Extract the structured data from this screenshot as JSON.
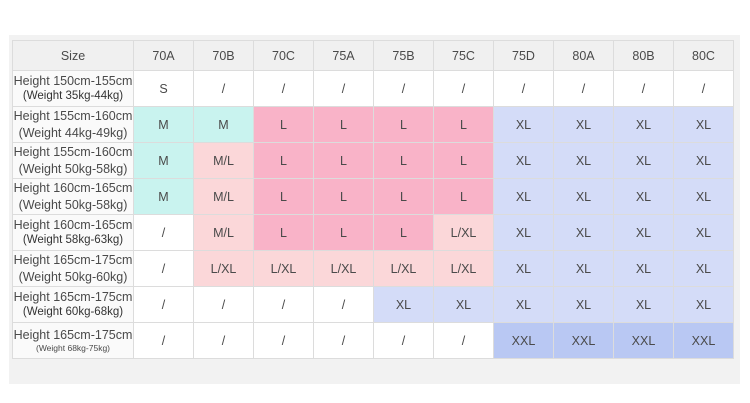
{
  "table": {
    "header_label": "Size",
    "columns": [
      "70A",
      "70B",
      "70C",
      "75A",
      "75B",
      "75C",
      "75D",
      "80A",
      "80B",
      "80C"
    ],
    "rows": [
      {
        "height": "Height 150cm-155cm",
        "weight": "(Weight 35kg-44kg)",
        "values": [
          "S",
          "/",
          "/",
          "/",
          "/",
          "/",
          "/",
          "/",
          "/",
          "/"
        ]
      },
      {
        "height": "Height 155cm-160cm",
        "weight": "(Weight 44kg-49kg)",
        "values": [
          "M",
          "M",
          "L",
          "L",
          "L",
          "L",
          "XL",
          "XL",
          "XL",
          "XL"
        ]
      },
      {
        "height": "Height 155cm-160cm",
        "weight": "(Weight 50kg-58kg)",
        "values": [
          "M",
          "M/L",
          "L",
          "L",
          "L",
          "L",
          "XL",
          "XL",
          "XL",
          "XL"
        ]
      },
      {
        "height": "Height 160cm-165cm",
        "weight": "(Weight 50kg-58kg)",
        "values": [
          "M",
          "M/L",
          "L",
          "L",
          "L",
          "L",
          "XL",
          "XL",
          "XL",
          "XL"
        ]
      },
      {
        "height": "Height 160cm-165cm",
        "weight": "(Weight 58kg-63kg)",
        "values": [
          "/",
          "M/L",
          "L",
          "L",
          "L",
          "L/XL",
          "XL",
          "XL",
          "XL",
          "XL"
        ]
      },
      {
        "height": "Height 165cm-175cm",
        "weight": "(Weight 50kg-60kg)",
        "values": [
          "/",
          "L/XL",
          "L/XL",
          "L/XL",
          "L/XL",
          "L/XL",
          "XL",
          "XL",
          "XL",
          "XL"
        ]
      },
      {
        "height": "Height 165cm-175cm",
        "weight": "(Weight 60kg-68kg)",
        "values": [
          "/",
          "/",
          "/",
          "/",
          "XL",
          "XL",
          "XL",
          "XL",
          "XL",
          "XL"
        ]
      },
      {
        "height": "Height 165cm-175cm",
        "weight": "(Weight 68kg-75kg)",
        "values": [
          "/",
          "/",
          "/",
          "/",
          "/",
          "/",
          "XXL",
          "XXL",
          "XXL",
          "XXL"
        ]
      }
    ],
    "colors": {
      "white": "#ffffff",
      "mint": "#c9f3ef",
      "pink": "#f9b3c8",
      "light_pink": "#fbd7d9",
      "lavender": "#d4dcf8",
      "blue": "#b9c8f3"
    }
  }
}
